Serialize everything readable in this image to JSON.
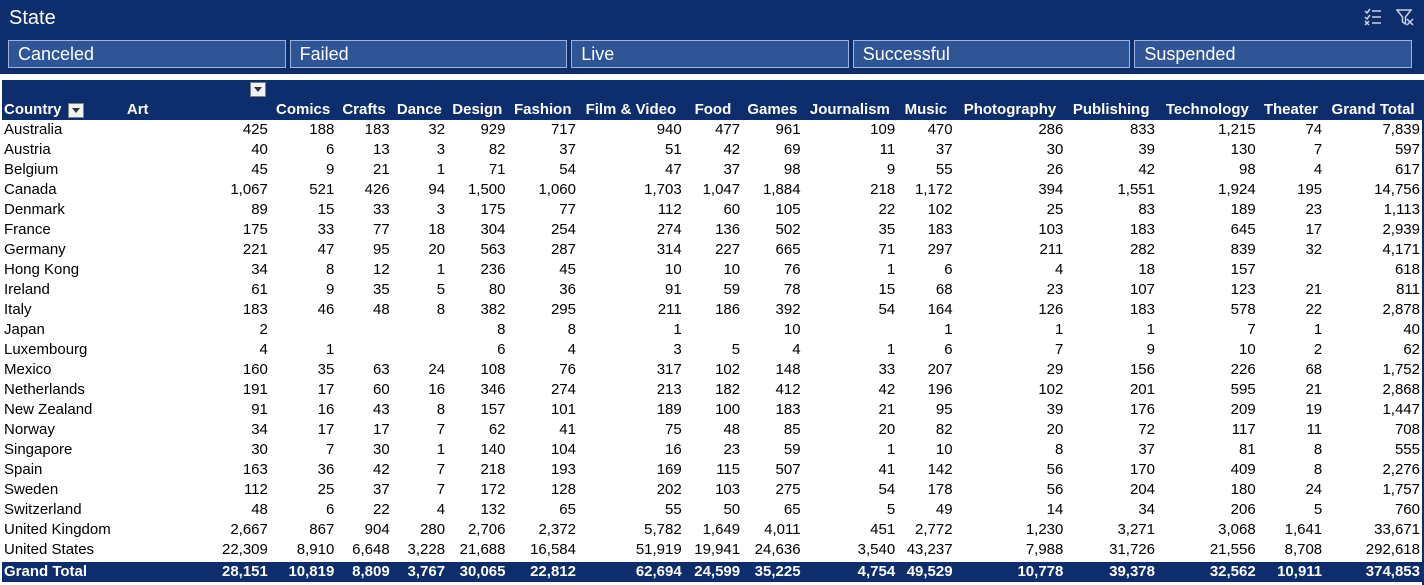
{
  "slicer": {
    "title": "State",
    "icons": [
      "multi-select-icon",
      "clear-filter-icon"
    ],
    "items": [
      "Canceled",
      "Failed",
      "Live",
      "Successful",
      "Suspended"
    ]
  },
  "pivot": {
    "row_label": "Country",
    "columns": [
      "Art",
      "Comics",
      "Crafts",
      "Dance",
      "Design",
      "Fashion",
      "Film & Video",
      "Food",
      "Games",
      "Journalism",
      "Music",
      "Photography",
      "Publishing",
      "Technology",
      "Theater",
      "Grand Total"
    ],
    "rows": [
      {
        "country": "Australia",
        "values": [
          "425",
          "188",
          "183",
          "32",
          "929",
          "717",
          "940",
          "477",
          "961",
          "109",
          "470",
          "286",
          "833",
          "1,215",
          "74",
          "7,839"
        ]
      },
      {
        "country": "Austria",
        "values": [
          "40",
          "6",
          "13",
          "3",
          "82",
          "37",
          "51",
          "42",
          "69",
          "11",
          "37",
          "30",
          "39",
          "130",
          "7",
          "597"
        ]
      },
      {
        "country": "Belgium",
        "values": [
          "45",
          "9",
          "21",
          "1",
          "71",
          "54",
          "47",
          "37",
          "98",
          "9",
          "55",
          "26",
          "42",
          "98",
          "4",
          "617"
        ]
      },
      {
        "country": "Canada",
        "values": [
          "1,067",
          "521",
          "426",
          "94",
          "1,500",
          "1,060",
          "1,703",
          "1,047",
          "1,884",
          "218",
          "1,172",
          "394",
          "1,551",
          "1,924",
          "195",
          "14,756"
        ]
      },
      {
        "country": "Denmark",
        "values": [
          "89",
          "15",
          "33",
          "3",
          "175",
          "77",
          "112",
          "60",
          "105",
          "22",
          "102",
          "25",
          "83",
          "189",
          "23",
          "1,113"
        ]
      },
      {
        "country": "France",
        "values": [
          "175",
          "33",
          "77",
          "18",
          "304",
          "254",
          "274",
          "136",
          "502",
          "35",
          "183",
          "103",
          "183",
          "645",
          "17",
          "2,939"
        ]
      },
      {
        "country": "Germany",
        "values": [
          "221",
          "47",
          "95",
          "20",
          "563",
          "287",
          "314",
          "227",
          "665",
          "71",
          "297",
          "211",
          "282",
          "839",
          "32",
          "4,171"
        ]
      },
      {
        "country": "Hong Kong",
        "values": [
          "34",
          "8",
          "12",
          "1",
          "236",
          "45",
          "10",
          "10",
          "76",
          "1",
          "6",
          "4",
          "18",
          "157",
          "",
          "618"
        ]
      },
      {
        "country": "Ireland",
        "values": [
          "61",
          "9",
          "35",
          "5",
          "80",
          "36",
          "91",
          "59",
          "78",
          "15",
          "68",
          "23",
          "107",
          "123",
          "21",
          "811"
        ]
      },
      {
        "country": "Italy",
        "values": [
          "183",
          "46",
          "48",
          "8",
          "382",
          "295",
          "211",
          "186",
          "392",
          "54",
          "164",
          "126",
          "183",
          "578",
          "22",
          "2,878"
        ]
      },
      {
        "country": "Japan",
        "values": [
          "2",
          "",
          "",
          "",
          "8",
          "8",
          "1",
          "",
          "10",
          "",
          "1",
          "1",
          "1",
          "7",
          "1",
          "40"
        ]
      },
      {
        "country": "Luxembourg",
        "values": [
          "4",
          "1",
          "",
          "",
          "6",
          "4",
          "3",
          "5",
          "4",
          "1",
          "6",
          "7",
          "9",
          "10",
          "2",
          "62"
        ]
      },
      {
        "country": "Mexico",
        "values": [
          "160",
          "35",
          "63",
          "24",
          "108",
          "76",
          "317",
          "102",
          "148",
          "33",
          "207",
          "29",
          "156",
          "226",
          "68",
          "1,752"
        ]
      },
      {
        "country": "Netherlands",
        "values": [
          "191",
          "17",
          "60",
          "16",
          "346",
          "274",
          "213",
          "182",
          "412",
          "42",
          "196",
          "102",
          "201",
          "595",
          "21",
          "2,868"
        ]
      },
      {
        "country": "New Zealand",
        "values": [
          "91",
          "16",
          "43",
          "8",
          "157",
          "101",
          "189",
          "100",
          "183",
          "21",
          "95",
          "39",
          "176",
          "209",
          "19",
          "1,447"
        ]
      },
      {
        "country": "Norway",
        "values": [
          "34",
          "17",
          "17",
          "7",
          "62",
          "41",
          "75",
          "48",
          "85",
          "20",
          "82",
          "20",
          "72",
          "117",
          "11",
          "708"
        ]
      },
      {
        "country": "Singapore",
        "values": [
          "30",
          "7",
          "30",
          "1",
          "140",
          "104",
          "16",
          "23",
          "59",
          "1",
          "10",
          "8",
          "37",
          "81",
          "8",
          "555"
        ]
      },
      {
        "country": "Spain",
        "values": [
          "163",
          "36",
          "42",
          "7",
          "218",
          "193",
          "169",
          "115",
          "507",
          "41",
          "142",
          "56",
          "170",
          "409",
          "8",
          "2,276"
        ]
      },
      {
        "country": "Sweden",
        "values": [
          "112",
          "25",
          "37",
          "7",
          "172",
          "128",
          "202",
          "103",
          "275",
          "54",
          "178",
          "56",
          "204",
          "180",
          "24",
          "1,757"
        ]
      },
      {
        "country": "Switzerland",
        "values": [
          "48",
          "6",
          "22",
          "4",
          "132",
          "65",
          "55",
          "50",
          "65",
          "5",
          "49",
          "14",
          "34",
          "206",
          "5",
          "760"
        ]
      },
      {
        "country": "United Kingdom",
        "values": [
          "2,667",
          "867",
          "904",
          "280",
          "2,706",
          "2,372",
          "5,782",
          "1,649",
          "4,011",
          "451",
          "2,772",
          "1,230",
          "3,271",
          "3,068",
          "1,641",
          "33,671"
        ]
      },
      {
        "country": "United States",
        "values": [
          "22,309",
          "8,910",
          "6,648",
          "3,228",
          "21,688",
          "16,584",
          "51,919",
          "19,941",
          "24,636",
          "3,540",
          "43,237",
          "7,988",
          "31,726",
          "21,556",
          "8,708",
          "292,618"
        ]
      }
    ],
    "grand_total": {
      "label": "Grand Total",
      "values": [
        "28,151",
        "10,819",
        "8,809",
        "3,767",
        "30,065",
        "22,812",
        "62,694",
        "24,599",
        "35,225",
        "4,754",
        "49,529",
        "10,778",
        "39,378",
        "32,562",
        "10,911",
        "374,853"
      ]
    }
  },
  "colors": {
    "header_bg": "#0e2d6d",
    "chip_bg": "#2f5597",
    "chip_border": "#9db3dc"
  }
}
